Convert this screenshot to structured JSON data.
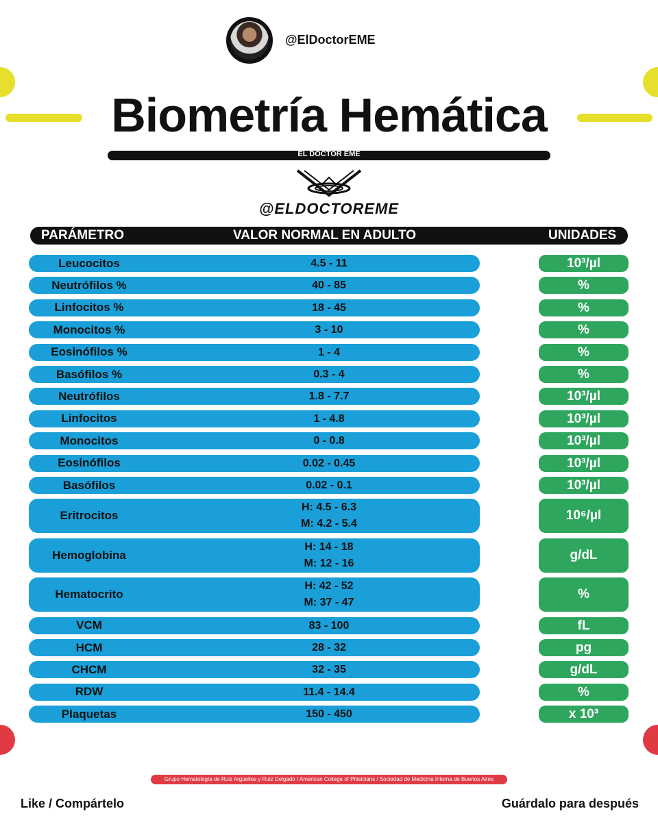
{
  "header": {
    "handle_top": "@ElDoctorEME",
    "title": "Biometría Hemática",
    "subtitle": "EL DOCTOR EME",
    "handle_brand": "@ELDOCTOREME"
  },
  "table": {
    "col_param": "PARÁMETRO",
    "col_value": "VALOR NORMAL EN ADULTO",
    "col_units": "UNIDADES",
    "rows": [
      {
        "param": "Leucocitos",
        "value": "4.5 - 11",
        "unit": "10³/µl"
      },
      {
        "param": "Neutrófilos %",
        "value": "40 - 85",
        "unit": "%"
      },
      {
        "param": "Linfocitos %",
        "value": "18 - 45",
        "unit": "%"
      },
      {
        "param": "Monocitos %",
        "value": "3 - 10",
        "unit": "%"
      },
      {
        "param": "Eosinófilos %",
        "value": "1 - 4",
        "unit": "%"
      },
      {
        "param": "Basófilos %",
        "value": "0.3 - 4",
        "unit": "%"
      },
      {
        "param": "Neutrófilos",
        "value": "1.8 - 7.7",
        "unit": "10³/µl"
      },
      {
        "param": "Linfocitos",
        "value": "1 - 4.8",
        "unit": "10³/µl"
      },
      {
        "param": "Monocitos",
        "value": "0 - 0.8",
        "unit": "10³/µl"
      },
      {
        "param": "Eosinófilos",
        "value": "0.02 - 0.45",
        "unit": "10³/µl"
      },
      {
        "param": "Basófilos",
        "value": "0.02 - 0.1",
        "unit": "10³/µl"
      },
      {
        "param": "Eritrocitos",
        "value": "H: 4.5 - 6.3",
        "value2": "M: 4.2 - 5.4",
        "unit": "10⁶/µl"
      },
      {
        "param": "Hemoglobina",
        "value": "H: 14 - 18",
        "value2": "M: 12 - 16",
        "unit": "g/dL"
      },
      {
        "param": "Hematocrito",
        "value": "H: 42 - 52",
        "value2": "M: 37 - 47",
        "unit": "%"
      },
      {
        "param": "VCM",
        "value": "83 - 100",
        "unit": "fL"
      },
      {
        "param": "HCM",
        "value": "28 - 32",
        "unit": "pg"
      },
      {
        "param": "CHCM",
        "value": "32 - 35",
        "unit": "g/dL"
      },
      {
        "param": "RDW",
        "value": "11.4 - 14.4",
        "unit": "%"
      },
      {
        "param": "Plaquetas",
        "value": "150 - 450",
        "unit": "x 10³"
      }
    ]
  },
  "footer": {
    "sources": "Grupo Hematología de Ruiz Argüelles y Ruiz Delgado / American College of Phisicians / Sociedad de Medicina Interna de Buenos Aires",
    "left": "Like / Compártelo",
    "right": "Guárdalo para después"
  },
  "colors": {
    "blue": "#1a9fd8",
    "green": "#2fa65e",
    "yellow": "#e6df2b",
    "red": "#e03b45",
    "black": "#111111"
  }
}
